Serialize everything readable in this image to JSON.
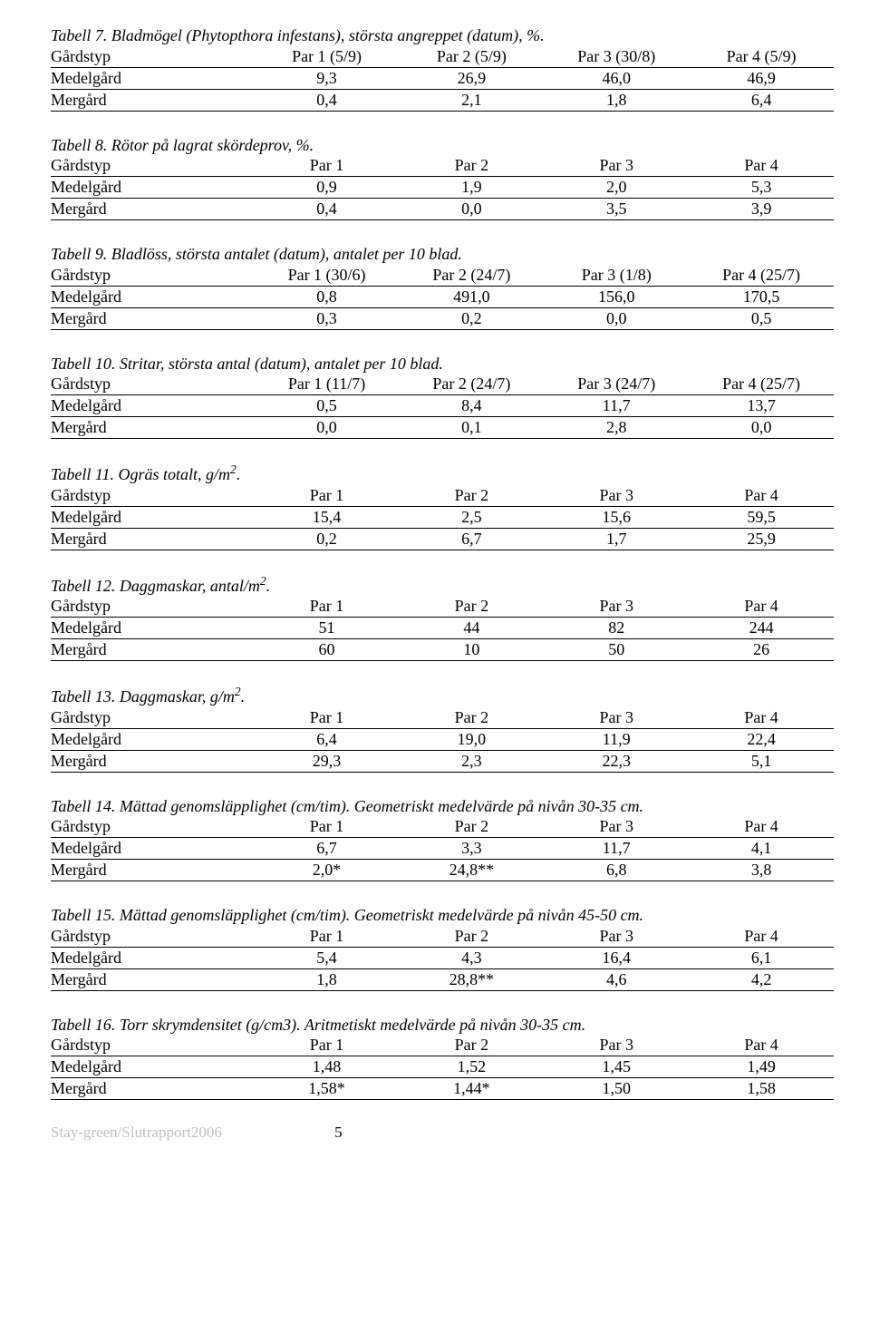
{
  "tables": [
    {
      "caption": "Tabell 7. Bladmögel (Phytopthora infestans), största angreppet (datum), %.",
      "headers": [
        "Gårdstyp",
        "Par 1 (5/9)",
        "Par 2 (5/9)",
        "Par 3 (30/8)",
        "Par 4 (5/9)"
      ],
      "rows": [
        [
          "Medelgård",
          "9,3",
          "26,9",
          "46,0",
          "46,9"
        ],
        [
          "Mergård",
          "0,4",
          "2,1",
          "1,8",
          "6,4"
        ]
      ]
    },
    {
      "caption": "Tabell 8. Rötor på lagrat skördeprov,   %.",
      "headers": [
        "Gårdstyp",
        "Par 1",
        "Par 2",
        "Par 3",
        "Par 4"
      ],
      "rows": [
        [
          "Medelgård",
          "0,9",
          "1,9",
          "2,0",
          "5,3"
        ],
        [
          "Mergård",
          "0,4",
          "0,0",
          "3,5",
          "3,9"
        ]
      ]
    },
    {
      "caption": "Tabell 9. Bladlöss, största antalet (datum), antalet per 10 blad.",
      "headers": [
        "Gårdstyp",
        "Par 1 (30/6)",
        "Par 2 (24/7)",
        "Par 3 (1/8)",
        "Par 4 (25/7)"
      ],
      "rows": [
        [
          "Medelgård",
          "0,8",
          "491,0",
          "156,0",
          "170,5"
        ],
        [
          "Mergård",
          "0,3",
          "0,2",
          "0,0",
          "0,5"
        ]
      ]
    },
    {
      "caption": "Tabell 10. Stritar, största antal (datum), antalet per 10 blad.",
      "headers": [
        "Gårdstyp",
        "Par 1 (11/7)",
        "Par 2 (24/7)",
        "Par 3 (24/7)",
        "Par 4 (25/7)"
      ],
      "rows": [
        [
          "Medelgård",
          "0,5",
          "8,4",
          "11,7",
          "13,7"
        ],
        [
          "Mergård",
          "0,0",
          "0,1",
          "2,8",
          "0,0"
        ]
      ]
    },
    {
      "caption_html": "Tabell 11. Ogräs totalt, g/m<span class=\"sup\">2</span>.",
      "headers": [
        "Gårdstyp",
        "Par 1",
        "Par 2",
        "Par 3",
        "Par 4"
      ],
      "rows": [
        [
          "Medelgård",
          "15,4",
          "2,5",
          "15,6",
          "59,5"
        ],
        [
          "Mergård",
          "0,2",
          "6,7",
          "1,7",
          "25,9"
        ]
      ]
    },
    {
      "caption_html": "Tabell 12. Daggmaskar, antal/m<span class=\"sup\">2</span>.",
      "headers": [
        "Gårdstyp",
        "Par 1",
        "Par 2",
        "Par 3",
        "Par 4"
      ],
      "rows": [
        [
          "Medelgård",
          "51",
          "44",
          "82",
          "244"
        ],
        [
          "Mergård",
          "60",
          "10",
          "50",
          "26"
        ]
      ]
    },
    {
      "caption_html": "Tabell 13. Daggmaskar, g/m<span class=\"sup\">2</span>.",
      "headers": [
        "Gårdstyp",
        "Par 1",
        "Par 2",
        "Par 3",
        "Par 4"
      ],
      "rows": [
        [
          "Medelgård",
          "6,4",
          "19,0",
          "11,9",
          "22,4"
        ],
        [
          "Mergård",
          "29,3",
          "2,3",
          "22,3",
          "5,1"
        ]
      ]
    },
    {
      "caption": "Tabell 14. Mättad genomsläpplighet (cm/tim). Geometriskt medelvärde  på nivån 30-35 cm.",
      "headers": [
        "Gårdstyp",
        "Par 1",
        "Par 2",
        "Par 3",
        "Par 4"
      ],
      "rows": [
        [
          "Medelgård",
          "6,7",
          "3,3",
          "11,7",
          "4,1"
        ],
        [
          "Mergård",
          "2,0*",
          "24,8**",
          "6,8",
          "3,8"
        ]
      ]
    },
    {
      "caption": "Tabell 15. Mättad genomsläpplighet (cm/tim). Geometriskt medelvärde på nivån 45-50 cm.",
      "headers": [
        "Gårdstyp",
        "Par 1",
        "Par 2",
        "Par 3",
        "Par 4"
      ],
      "rows": [
        [
          "Medelgård",
          "5,4",
          "4,3",
          "16,4",
          "6,1"
        ],
        [
          "Mergård",
          "1,8",
          "28,8**",
          "4,6",
          "4,2"
        ]
      ]
    },
    {
      "caption": "Tabell 16. Torr skrymdensitet (g/cm3). Aritmetiskt medelvärde på nivån 30-35 cm.",
      "headers": [
        "Gårdstyp",
        "Par 1",
        "Par 2",
        "Par 3",
        "Par 4"
      ],
      "rows": [
        [
          "Medelgård",
          "1,48",
          "1,52",
          "1,45",
          "1,49"
        ],
        [
          "Mergård",
          "1,58*",
          "1,44*",
          "1,50",
          "1,58"
        ]
      ]
    }
  ],
  "footer": {
    "left": "Stay-green/Slutrapport2006",
    "page": "5"
  },
  "style": {
    "font_family": "Times New Roman",
    "font_size_pt": 14,
    "text_color": "#000000",
    "footer_color": "#bfbfbf",
    "rule_color": "#000000",
    "background": "#ffffff"
  }
}
